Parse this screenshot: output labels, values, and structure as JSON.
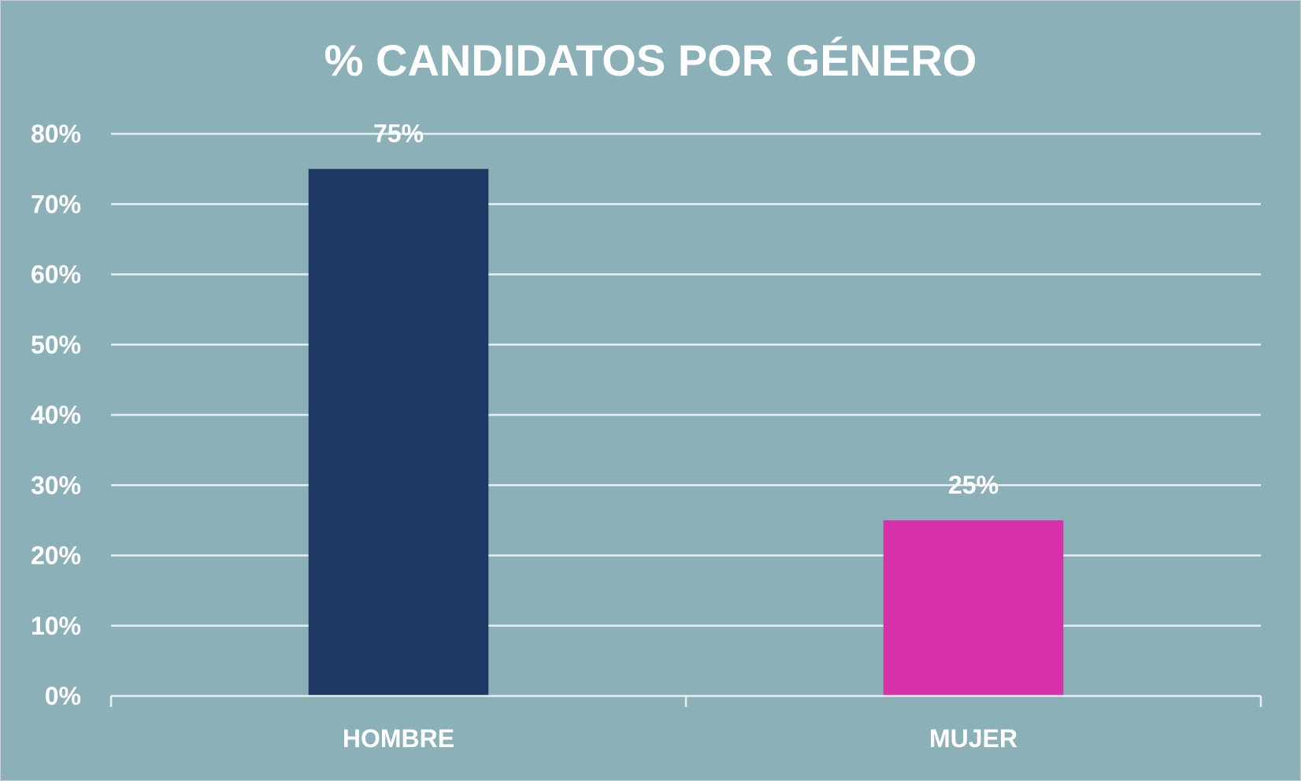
{
  "chart_data": {
    "type": "bar",
    "title": "% CANDIDATOS POR GÉNERO",
    "xlabel": "",
    "ylabel": "",
    "categories": [
      "HOMBRE",
      "MUJER"
    ],
    "values": [
      75,
      25
    ],
    "value_labels": [
      "75%",
      "25%"
    ],
    "bar_colors": [
      "#203864",
      "#d631aa"
    ],
    "ylim": [
      0,
      80
    ],
    "yticks": [
      0,
      10,
      20,
      30,
      40,
      50,
      60,
      70,
      80
    ],
    "ytick_labels": [
      "0%",
      "10%",
      "20%",
      "30%",
      "40%",
      "50%",
      "60%",
      "70%",
      "80%"
    ],
    "grid": true,
    "legend": "none"
  },
  "colors": {
    "background": "#8bb0b8",
    "gridline": "#e6eef0",
    "text": "#ffffff"
  }
}
